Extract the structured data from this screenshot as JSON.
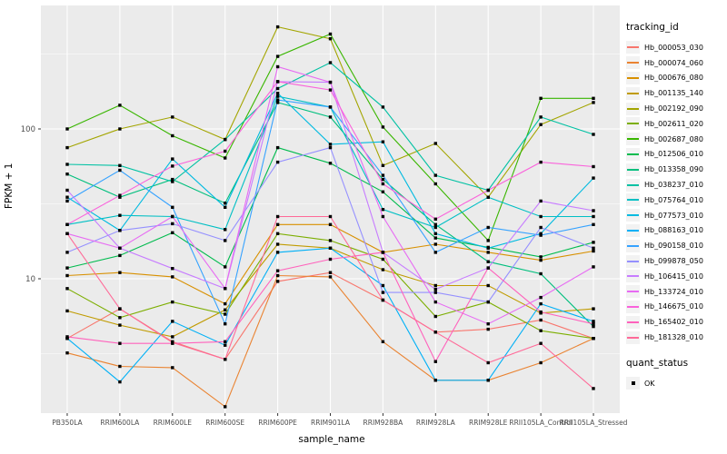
{
  "chart_data": {
    "type": "line",
    "title": "",
    "xlabel": "sample_name",
    "ylabel": "FPKM + 1",
    "y_scale": "log10",
    "y_ticks": [
      10,
      100
    ],
    "y_minor_ticks": [
      3.162,
      31.62,
      316.2
    ],
    "ylim": [
      1.3,
      670
    ],
    "grid": "on",
    "legend_position": "right",
    "legend_title": "tracking_id",
    "marker": "black-square",
    "categories": [
      "PB350LA",
      "RRIM600LA",
      "RRIM600LE",
      "RRIM600SE",
      "RRIM600PE",
      "RRIM901LA",
      "RRIM928BA",
      "RRIM928LA",
      "RRIM928LE",
      "RRII105LA_Control",
      "RRII105LA_Stressed"
    ],
    "series": [
      {
        "name": "Hb_000053_030",
        "color": "#F8766D",
        "values": [
          4.0,
          6.3,
          3.8,
          2.9,
          9.6,
          11,
          7.2,
          4.4,
          4.6,
          5.3,
          4.0
        ]
      },
      {
        "name": "Hb_000074_060",
        "color": "#EA8331",
        "values": [
          3.2,
          2.6,
          2.55,
          1.4,
          10.5,
          10.3,
          3.8,
          2.1,
          2.1,
          2.75,
          4.0
        ]
      },
      {
        "name": "Hb_000676_080",
        "color": "#D89000",
        "values": [
          10.5,
          11,
          10.3,
          6.8,
          23,
          23,
          15,
          17,
          15,
          13.3,
          15.3
        ]
      },
      {
        "name": "Hb_001135_140",
        "color": "#C09B00",
        "values": [
          6.1,
          4.9,
          4.1,
          6.2,
          17,
          16,
          11.5,
          9,
          9,
          5.9,
          6.3
        ]
      },
      {
        "name": "Hb_002192_090",
        "color": "#A3A500",
        "values": [
          75,
          100,
          120,
          85,
          480,
          400,
          57,
          80,
          35,
          107,
          150
        ]
      },
      {
        "name": "Hb_002611_020",
        "color": "#7CAE00",
        "values": [
          8.6,
          5.5,
          7.0,
          5.8,
          20,
          18,
          13.5,
          5.6,
          7.0,
          4.5,
          4.0
        ]
      },
      {
        "name": "Hb_002687_080",
        "color": "#39B600",
        "values": [
          100,
          144,
          90,
          64,
          305,
          430,
          103,
          43,
          18,
          160,
          160
        ]
      },
      {
        "name": "Hb_012506_010",
        "color": "#00BB4E",
        "values": [
          11.8,
          14.3,
          20.3,
          12,
          75,
          59,
          38,
          18.7,
          16.2,
          14,
          17.5
        ]
      },
      {
        "name": "Hb_013358_090",
        "color": "#00BF7D",
        "values": [
          50,
          35,
          46,
          32,
          150,
          120,
          46,
          23,
          13,
          10.8,
          4.8
        ]
      },
      {
        "name": "Hb_038237_010",
        "color": "#00C1A3",
        "values": [
          58,
          57,
          44.5,
          85,
          186,
          277,
          140,
          49,
          39,
          120,
          92
        ]
      },
      {
        "name": "Hb_075764_010",
        "color": "#00BFC4",
        "values": [
          23,
          26.5,
          26,
          21.3,
          165,
          140,
          29,
          22,
          35,
          26,
          26
        ]
      },
      {
        "name": "Hb_077573_010",
        "color": "#00BAE0",
        "values": [
          35,
          21,
          63,
          30,
          173,
          79,
          82,
          20,
          16,
          20,
          47
        ]
      },
      {
        "name": "Hb_088163_010",
        "color": "#00B0F6",
        "values": [
          4.0,
          2.05,
          5.2,
          3.6,
          15,
          16,
          9,
          2.1,
          2.1,
          6.8,
          5.2
        ]
      },
      {
        "name": "Hb_090158_010",
        "color": "#35A2FF",
        "values": [
          33,
          53,
          30,
          5.0,
          156,
          140,
          49,
          15,
          22,
          19.5,
          23
        ]
      },
      {
        "name": "Hb_099878_050",
        "color": "#9590FF",
        "values": [
          15,
          21,
          23.3,
          18,
          60,
          75,
          8.1,
          8.1,
          7.0,
          22,
          16
        ]
      },
      {
        "name": "Hb_106415_010",
        "color": "#C77CFF",
        "values": [
          39,
          16,
          11.7,
          8.6,
          207,
          205,
          15,
          8.5,
          11.8,
          33,
          28.5
        ]
      },
      {
        "name": "Hb_133724_010",
        "color": "#E76BF3",
        "values": [
          20,
          16,
          26,
          8.6,
          260,
          205,
          26,
          7,
          5,
          7.5,
          12
        ]
      },
      {
        "name": "Hb_146675_010",
        "color": "#FA62DB",
        "values": [
          23,
          36,
          56.5,
          71,
          207,
          182,
          43,
          25,
          39,
          60,
          56
        ]
      },
      {
        "name": "Hb_165402_010",
        "color": "#FF62BC",
        "values": [
          4.1,
          3.7,
          3.7,
          3.8,
          11.3,
          13.5,
          15,
          2.8,
          11.8,
          6.0,
          5.0
        ]
      },
      {
        "name": "Hb_181328_010",
        "color": "#FF6A98",
        "values": [
          20,
          6.3,
          3.75,
          2.9,
          26,
          26,
          7.2,
          4.4,
          2.75,
          3.7,
          1.85
        ]
      }
    ],
    "quant_status": {
      "title": "quant_status",
      "items": [
        {
          "label": "OK",
          "marker": "black-square"
        }
      ]
    }
  },
  "panel": {
    "bg": "#EBEBEB",
    "grid_color": "#FFFFFF",
    "tick_color": "#333333",
    "tick_label_color": "#4D4D4D",
    "key_bg": "#F2F2F2"
  }
}
